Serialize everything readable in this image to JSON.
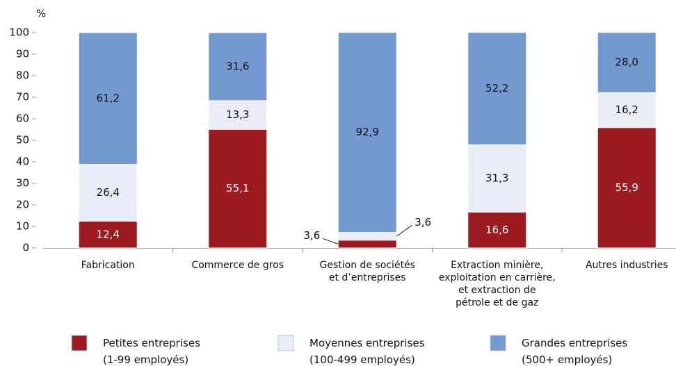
{
  "chart_data": {
    "type": "stacked_bar",
    "y_label": "%",
    "categories": [
      "Fabrication",
      "Commerce de gros",
      "Gestion de sociétés\net d’entreprises",
      "Extraction minière,\nexploitation en carrière,\net extraction de\npétrole et de gaz",
      "Autres industries"
    ],
    "series": [
      {
        "name": "Petites entreprises\n(1-99 employés)",
        "color": "#9b1b21",
        "values": [
          12.4,
          55.1,
          3.6,
          16.6,
          55.9
        ],
        "value_labels": [
          "12,4",
          "55,1",
          "3,6",
          "16,6",
          "55,9"
        ]
      },
      {
        "name": "Moyennes entreprises\n(100-499 employés)",
        "color": "#e8edf7",
        "values": [
          26.4,
          13.3,
          3.6,
          31.3,
          16.2
        ],
        "value_labels": [
          "26,4",
          "13,3",
          "3,6",
          "31,3",
          "16,2"
        ]
      },
      {
        "name": "Grandes entreprises\n(500+ employés)",
        "color": "#7399d0",
        "values": [
          61.2,
          31.6,
          92.9,
          52.2,
          28.0
        ],
        "value_labels": [
          "61,2",
          "31,6",
          "92,9",
          "52,2",
          "28,0"
        ]
      }
    ],
    "ylim": [
      0,
      100
    ],
    "yticks": [
      0,
      10,
      20,
      30,
      40,
      50,
      60,
      70,
      80,
      90,
      100
    ]
  }
}
